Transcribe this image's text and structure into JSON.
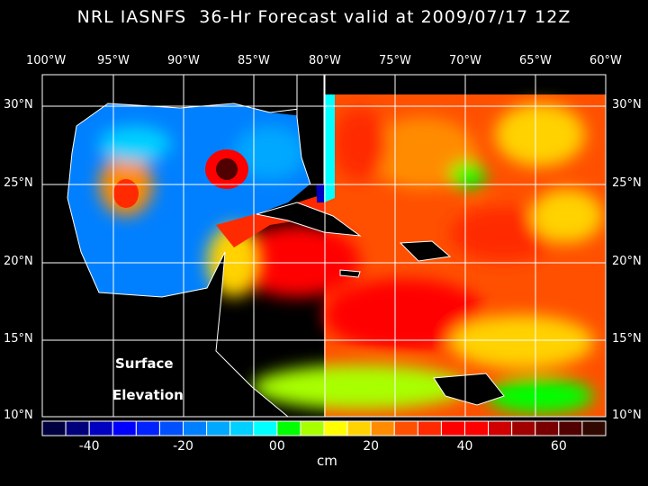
{
  "title": "NRL IASNFS  36-Hr Forecast valid at 2009/07/17 12Z",
  "lon_labels": [
    "100°W",
    "95°W",
    "90°W",
    "85°W",
    "80°W",
    "75°W",
    "70°W",
    "65°W",
    "60°W"
  ],
  "lat_labels": [
    "30°N",
    "25°N",
    "20°N",
    "15°N",
    "10°N"
  ],
  "map_labels": {
    "line1": "Surface",
    "line2": "Elevation"
  },
  "colorbar": {
    "ticks": [
      "-40",
      "-20",
      "00",
      "20",
      "40",
      "60"
    ],
    "unit": "cm",
    "range": [
      -50,
      70
    ],
    "step": 5,
    "colors": [
      "#000040",
      "#00007a",
      "#0000c0",
      "#0000ff",
      "#0022ff",
      "#0050ff",
      "#0080ff",
      "#00a8ff",
      "#00d0ff",
      "#00ffff",
      "#00ff00",
      "#a8ff00",
      "#ffff00",
      "#ffd200",
      "#ff8c00",
      "#ff5000",
      "#ff2a00",
      "#ff0000",
      "#ff0000",
      "#d00000",
      "#a00000",
      "#780000",
      "#500000",
      "#300800"
    ]
  }
}
